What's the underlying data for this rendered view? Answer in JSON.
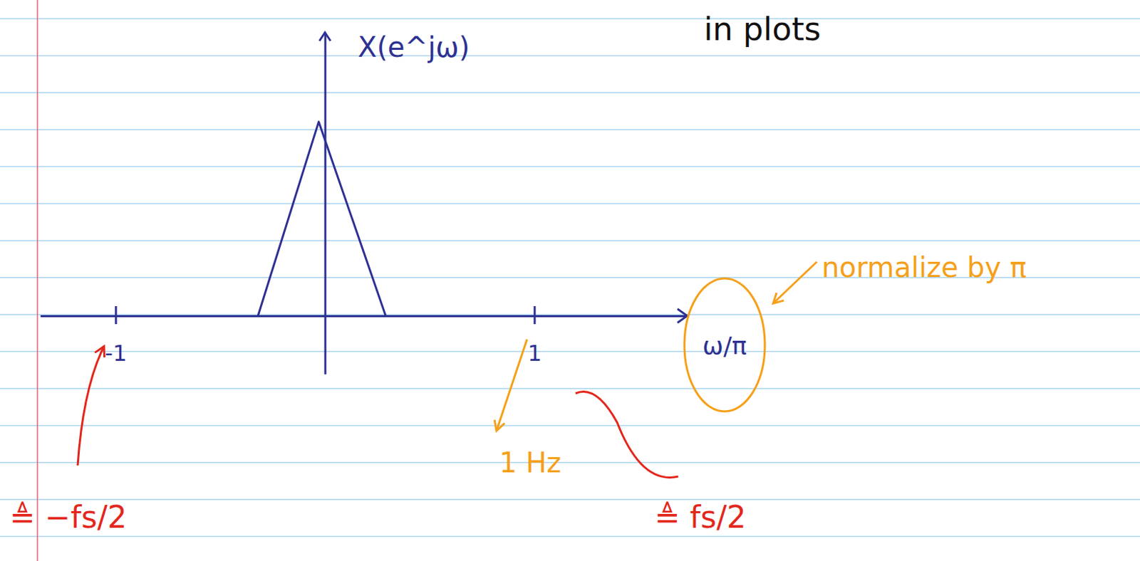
{
  "chart_data": {
    "type": "line",
    "x_label": "ω/π",
    "y_label": "X(e^jω)",
    "x": [
      -0.32,
      -0.03,
      0.29
    ],
    "values": [
      0,
      1,
      0
    ],
    "color": "#2e3192",
    "xlim": [
      -1.36,
      1.73
    ],
    "xticks": [
      -1,
      1
    ],
    "ylim": [
      -0.3,
      1.46
    ],
    "yticks": [],
    "tick_labels": "x",
    "annotations": [
      "in plots",
      "normalize by π",
      "1 Hz",
      "≜ −fs/2",
      "≜ fs/2"
    ]
  }
}
